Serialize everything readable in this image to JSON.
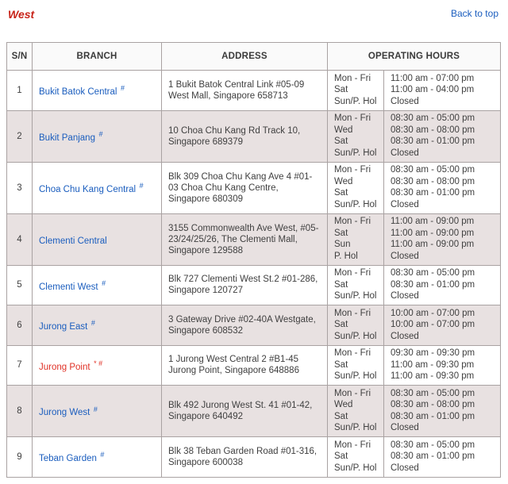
{
  "page": {
    "title": "West",
    "back_to_top": "Back to top"
  },
  "colors": {
    "title_red": "#c8241a",
    "link_blue": "#1a5dbe",
    "branch_red": "#e03126",
    "row_alt_bg": "#e8e1e1",
    "border": "#a9a2a2",
    "text": "#404040"
  },
  "table": {
    "headers": {
      "sn": "S/N",
      "branch": "BRANCH",
      "address": "ADDRESS",
      "hours": "OPERATING HOURS"
    },
    "rows": [
      {
        "sn": "1",
        "branch": "Bukit Batok Central",
        "mark": "#",
        "highlight": false,
        "address": "1 Bukit Batok Central Link #05-09 West Mall, Singapore 658713",
        "hours": [
          {
            "day": "Mon - Fri",
            "time": "11:00 am - 07:00 pm"
          },
          {
            "day": "Sat",
            "time": "11:00 am - 04:00 pm"
          },
          {
            "day": "Sun/P. Hol",
            "time": "Closed"
          }
        ]
      },
      {
        "sn": "2",
        "branch": "Bukit Panjang",
        "mark": "#",
        "highlight": false,
        "address": "10 Choa Chu Kang Rd Track 10, Singapore 689379",
        "hours": [
          {
            "day": "Mon - Fri",
            "time": "08:30 am - 05:00 pm"
          },
          {
            "day": "Wed",
            "time": "08:30 am - 08:00 pm"
          },
          {
            "day": "Sat",
            "time": "08:30 am - 01:00 pm"
          },
          {
            "day": "Sun/P. Hol",
            "time": "Closed"
          }
        ]
      },
      {
        "sn": "3",
        "branch": "Choa Chu Kang Central",
        "mark": "#",
        "highlight": false,
        "address": "Blk 309 Choa Chu Kang Ave 4 #01-03 Choa Chu Kang Centre, Singapore 680309",
        "hours": [
          {
            "day": "Mon - Fri",
            "time": "08:30 am - 05:00 pm"
          },
          {
            "day": "Wed",
            "time": "08:30 am - 08:00 pm"
          },
          {
            "day": "Sat",
            "time": "08:30 am - 01:00 pm"
          },
          {
            "day": "Sun/P. Hol",
            "time": "Closed"
          }
        ]
      },
      {
        "sn": "4",
        "branch": "Clementi Central",
        "mark": "",
        "highlight": false,
        "address": "3155 Commonwealth Ave West, #05-23/24/25/26, The Clementi Mall, Singapore 129588",
        "hours": [
          {
            "day": "Mon - Fri",
            "time": "11:00 am - 09:00 pm"
          },
          {
            "day": "Sat",
            "time": "11:00 am - 09:00 pm"
          },
          {
            "day": "Sun",
            "time": "11:00 am - 09:00 pm"
          },
          {
            "day": "P. Hol",
            "time": "Closed"
          }
        ]
      },
      {
        "sn": "5",
        "branch": "Clementi West",
        "mark": "#",
        "highlight": false,
        "address": "Blk 727 Clementi West St.2 #01-286, Singapore 120727",
        "hours": [
          {
            "day": "Mon - Fri",
            "time": "08:30 am - 05:00 pm"
          },
          {
            "day": "Sat",
            "time": "08:30 am - 01:00 pm"
          },
          {
            "day": "Sun/P. Hol",
            "time": "Closed"
          }
        ]
      },
      {
        "sn": "6",
        "branch": "Jurong East",
        "mark": "#",
        "highlight": false,
        "address": "3 Gateway Drive #02-40A Westgate, Singapore 608532",
        "hours": [
          {
            "day": "Mon - Fri",
            "time": "10:00 am - 07:00 pm"
          },
          {
            "day": "Sat",
            "time": "10:00 am - 07:00 pm"
          },
          {
            "day": "Sun/P. Hol",
            "time": "Closed"
          }
        ]
      },
      {
        "sn": "7",
        "branch": "Jurong Point",
        "mark": "* #",
        "highlight": true,
        "address": "1 Jurong West Central 2 #B1-45 Jurong Point, Singapore 648886",
        "hours": [
          {
            "day": "Mon - Fri",
            "time": "09:30 am - 09:30 pm"
          },
          {
            "day": "Sat",
            "time": "11:00 am - 09:30 pm"
          },
          {
            "day": "Sun/P. Hol",
            "time": "11:00 am - 09:30 pm"
          }
        ]
      },
      {
        "sn": "8",
        "branch": "Jurong West",
        "mark": "#",
        "highlight": false,
        "address": "Blk 492 Jurong West St. 41 #01-42, Singapore 640492",
        "hours": [
          {
            "day": "Mon - Fri",
            "time": "08:30 am - 05:00 pm"
          },
          {
            "day": "Wed",
            "time": "08:30 am - 08:00 pm"
          },
          {
            "day": "Sat",
            "time": "08:30 am - 01:00 pm"
          },
          {
            "day": "Sun/P. Hol",
            "time": "Closed"
          }
        ]
      },
      {
        "sn": "9",
        "branch": "Teban Garden",
        "mark": "#",
        "highlight": false,
        "address": "Blk 38 Teban Garden Road #01-316, Singapore 600038",
        "hours": [
          {
            "day": "Mon - Fri",
            "time": "08:30 am - 05:00 pm"
          },
          {
            "day": "Sat",
            "time": "08:30 am - 01:00 pm"
          },
          {
            "day": "Sun/P. Hol",
            "time": "Closed"
          }
        ]
      }
    ]
  }
}
